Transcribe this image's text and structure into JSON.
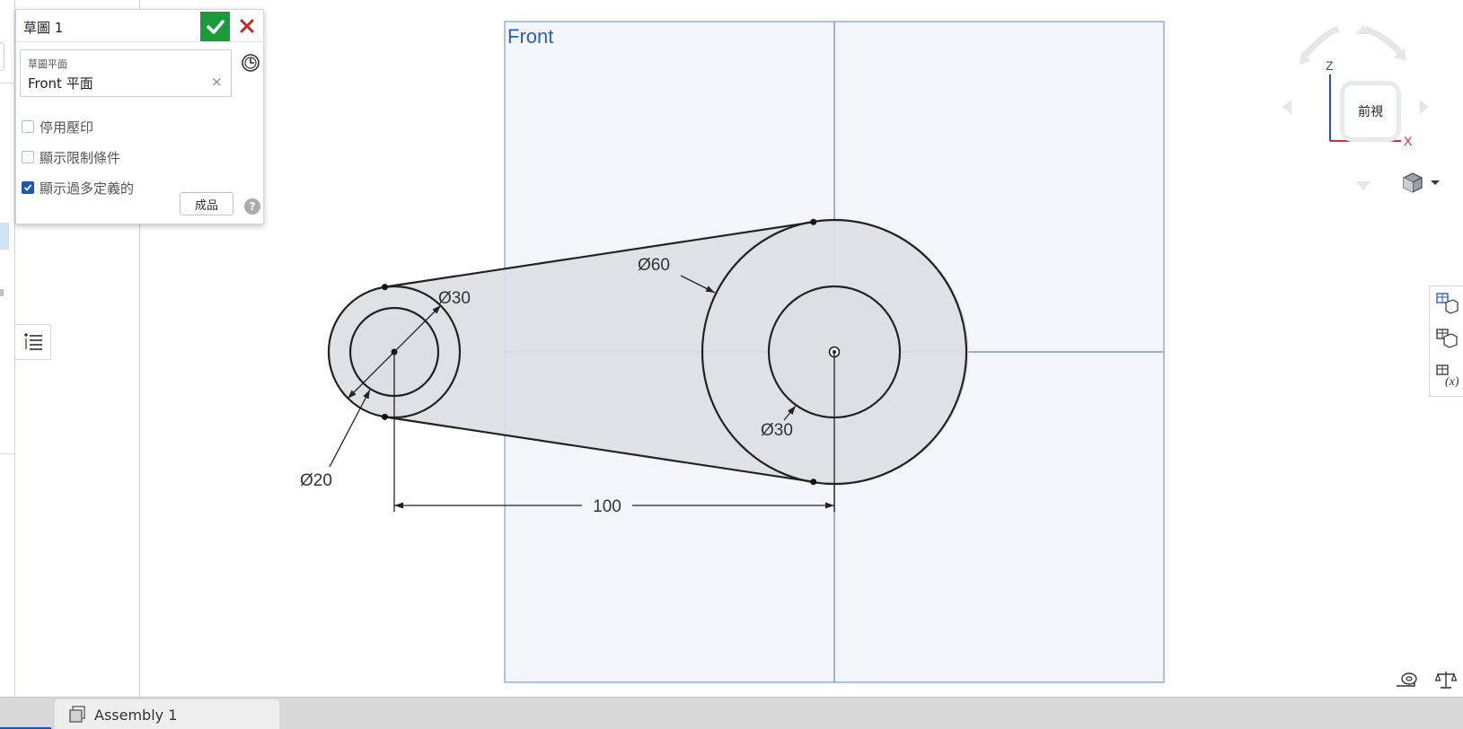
{
  "sketch_panel": {
    "title": "草圖 1",
    "plane_label": "草圖平面",
    "plane_value": "Front 平面",
    "plane_clear": "×",
    "checkboxes": [
      {
        "label": "停用壓印",
        "checked": false
      },
      {
        "label": "顯示限制條件",
        "checked": false
      },
      {
        "label": "顯示過多定義的",
        "checked": true
      }
    ],
    "finish_label": "成品",
    "help_label": "?"
  },
  "canvas": {
    "plane_name": "Front",
    "dimensions": {
      "small_outer": "Ø30",
      "small_inner": "Ø20",
      "large_outer": "Ø60",
      "large_inner": "Ø30",
      "center_distance": "100"
    }
  },
  "view_cube": {
    "face_label": "前視",
    "axis_z": "Z",
    "axis_x": "X"
  },
  "tabs": [
    {
      "label": "Assembly 1"
    }
  ],
  "colors": {
    "accent": "#1a57b6",
    "accept": "#179b3b",
    "cancel": "#c62828",
    "plane_fill": "#f2f6fa",
    "plane_border": "#8fb3d9",
    "plane_label": "#2f5db5",
    "region_fill": "#dcdfe4"
  },
  "icons": {
    "accept": "checkmark-icon",
    "cancel": "close-icon",
    "history": "clock-icon",
    "list": "list-icon",
    "render_mode": "cube-icon",
    "measure": "tape-measure-icon",
    "mass": "scale-icon"
  }
}
